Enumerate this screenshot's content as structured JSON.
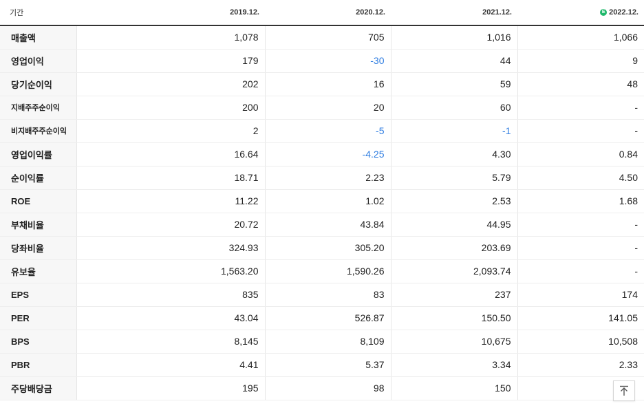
{
  "header": {
    "label": "기간",
    "periods": [
      "2019.12.",
      "2020.12.",
      "2021.12.",
      "2022.12."
    ],
    "estimate_badge": "E"
  },
  "rows": [
    {
      "label": "매출액",
      "values": [
        "1,078",
        "705",
        "1,016",
        "1,066"
      ]
    },
    {
      "label": "영업이익",
      "values": [
        "179",
        "-30",
        "44",
        "9"
      ]
    },
    {
      "label": "당기순이익",
      "values": [
        "202",
        "16",
        "59",
        "48"
      ]
    },
    {
      "label": "지배주주순이익",
      "values": [
        "200",
        "20",
        "60",
        "-"
      ]
    },
    {
      "label": "비지배주주순이익",
      "values": [
        "2",
        "-5",
        "-1",
        "-"
      ]
    },
    {
      "label": "영업이익률",
      "values": [
        "16.64",
        "-4.25",
        "4.30",
        "0.84"
      ]
    },
    {
      "label": "순이익률",
      "values": [
        "18.71",
        "2.23",
        "5.79",
        "4.50"
      ]
    },
    {
      "label": "ROE",
      "values": [
        "11.22",
        "1.02",
        "2.53",
        "1.68"
      ]
    },
    {
      "label": "부채비율",
      "values": [
        "20.72",
        "43.84",
        "44.95",
        "-"
      ]
    },
    {
      "label": "당좌비율",
      "values": [
        "324.93",
        "305.20",
        "203.69",
        "-"
      ]
    },
    {
      "label": "유보율",
      "values": [
        "1,563.20",
        "1,590.26",
        "2,093.74",
        "-"
      ]
    },
    {
      "label": "EPS",
      "values": [
        "835",
        "83",
        "237",
        "174"
      ]
    },
    {
      "label": "PER",
      "values": [
        "43.04",
        "526.87",
        "150.50",
        "141.05"
      ]
    },
    {
      "label": "BPS",
      "values": [
        "8,145",
        "8,109",
        "10,675",
        "10,508"
      ]
    },
    {
      "label": "PBR",
      "values": [
        "4.41",
        "5.37",
        "3.34",
        "2.33"
      ]
    },
    {
      "label": "주당배당금",
      "values": [
        "195",
        "98",
        "150",
        ""
      ]
    }
  ],
  "colors": {
    "negative": "#2f7de1",
    "estimate_badge": "#1fb86b"
  },
  "icons": {
    "scroll_top": "arrow-up-to-line-icon"
  }
}
